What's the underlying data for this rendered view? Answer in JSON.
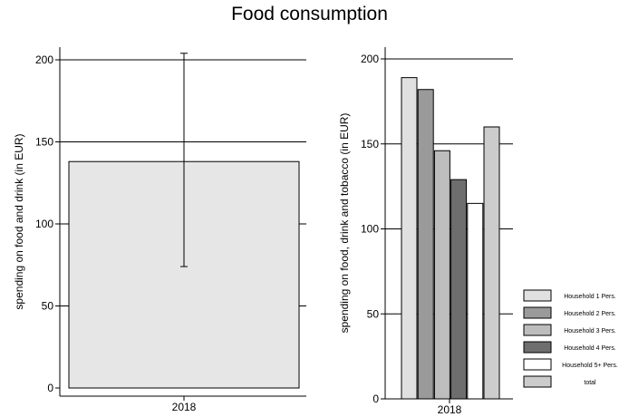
{
  "title": "Food consumption",
  "chart_data": [
    {
      "type": "bar",
      "categories": [
        "2018"
      ],
      "values": [
        138
      ],
      "error_bars": [
        {
          "low": 74,
          "high": 204
        }
      ],
      "ylabel": "spending on food and drink (in EUR)",
      "xlabel": "",
      "ylim": [
        0,
        210
      ],
      "yticks": [
        0,
        50,
        100,
        150,
        200
      ],
      "grid": true,
      "bar_color": "#e6e6e6"
    },
    {
      "type": "bar",
      "categories": [
        "2018"
      ],
      "series": [
        {
          "name": "Household 1 Pers.",
          "values": [
            189
          ],
          "color": "#e0e0e0"
        },
        {
          "name": "Household 2 Pers.",
          "values": [
            182
          ],
          "color": "#9a9a9a"
        },
        {
          "name": "Household 3 Pers.",
          "values": [
            146
          ],
          "color": "#bdbdbd"
        },
        {
          "name": "Household 4 Pers.",
          "values": [
            129
          ],
          "color": "#6e6e6e"
        },
        {
          "name": "Household 5+ Pers.",
          "values": [
            115
          ],
          "color": "#ffffff"
        },
        {
          "name": "total",
          "values": [
            160
          ],
          "color": "#cccccc"
        }
      ],
      "ylabel": "spending on food, drink and tobacco (in EUR)",
      "xlabel": "",
      "ylim": [
        0,
        205
      ],
      "yticks": [
        0,
        50,
        100,
        150,
        200
      ],
      "grid": true,
      "legend": "right"
    }
  ]
}
